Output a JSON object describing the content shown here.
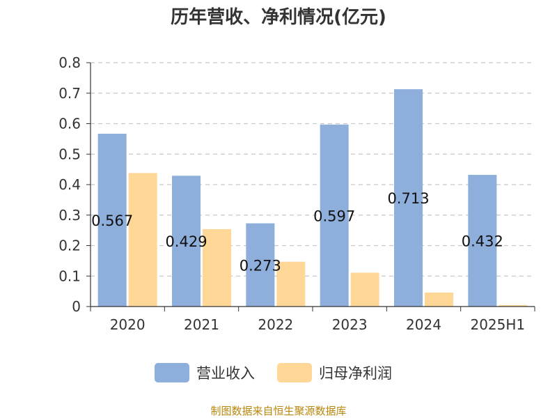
{
  "chart_data": {
    "type": "bar",
    "title": "历年营收、净利情况(亿元)",
    "categories": [
      "2020",
      "2021",
      "2022",
      "2023",
      "2024",
      "2025H1"
    ],
    "series": [
      {
        "name": "营业收入",
        "values": [
          0.567,
          0.429,
          0.273,
          0.597,
          0.713,
          0.432
        ],
        "color": "#8eaedb",
        "labels": [
          "0.567",
          "0.429",
          "0.273",
          "0.597",
          "0.713",
          "0.432"
        ]
      },
      {
        "name": "归母净利润",
        "values": [
          0.438,
          0.254,
          0.147,
          0.111,
          0.046,
          0.005
        ],
        "color": "#ffd898"
      }
    ],
    "ylim": [
      0,
      0.8
    ],
    "yticks": [
      "0",
      "0.1",
      "0.2",
      "0.3",
      "0.4",
      "0.5",
      "0.6",
      "0.7",
      "0.8"
    ],
    "grid": true,
    "legend_position": "bottom-center"
  },
  "source": "制图数据来自恒生聚源数据库"
}
